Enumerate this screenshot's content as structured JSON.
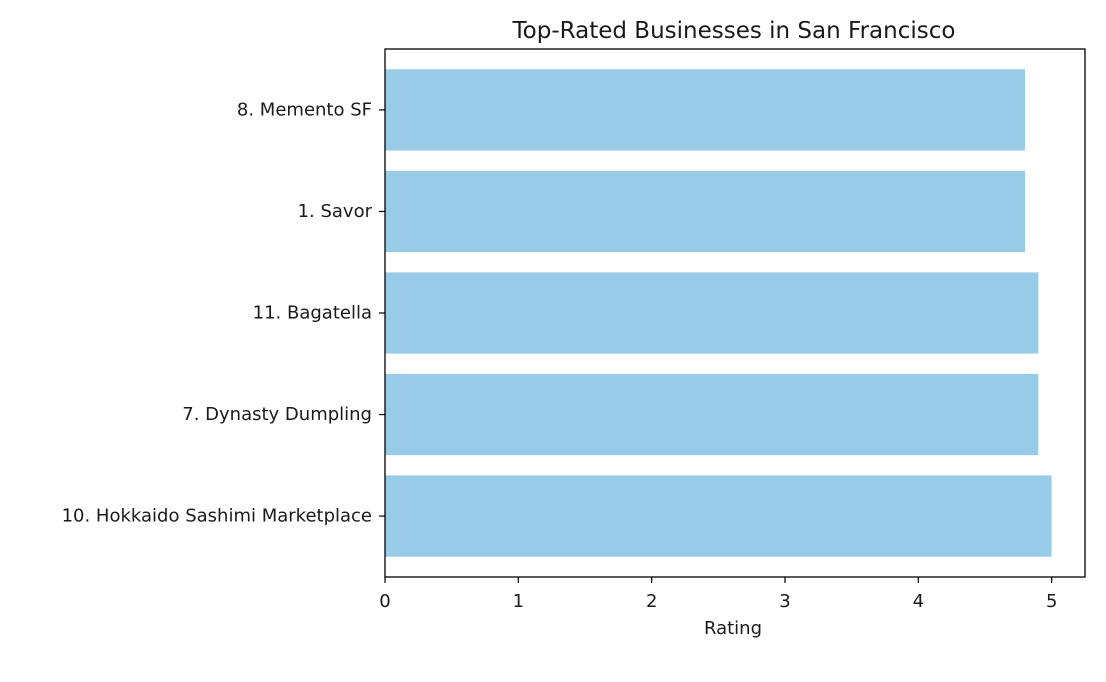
{
  "chart_data": {
    "type": "bar",
    "orientation": "horizontal",
    "title": "Top-Rated Businesses in San Francisco",
    "xlabel": "Rating",
    "ylabel": "",
    "categories": [
      "8. Memento SF",
      "1. Savor",
      "11. Bagatella",
      "7. Dynasty Dumpling",
      "10. Hokkaido Sashimi Marketplace"
    ],
    "values": [
      4.8,
      4.8,
      4.9,
      4.9,
      5.0
    ],
    "xlim": [
      0,
      5.25
    ],
    "xticks": [
      "0",
      "1",
      "2",
      "3",
      "4",
      "5"
    ],
    "grid": false,
    "legend": "none",
    "bar_color": "#97cbe7"
  }
}
